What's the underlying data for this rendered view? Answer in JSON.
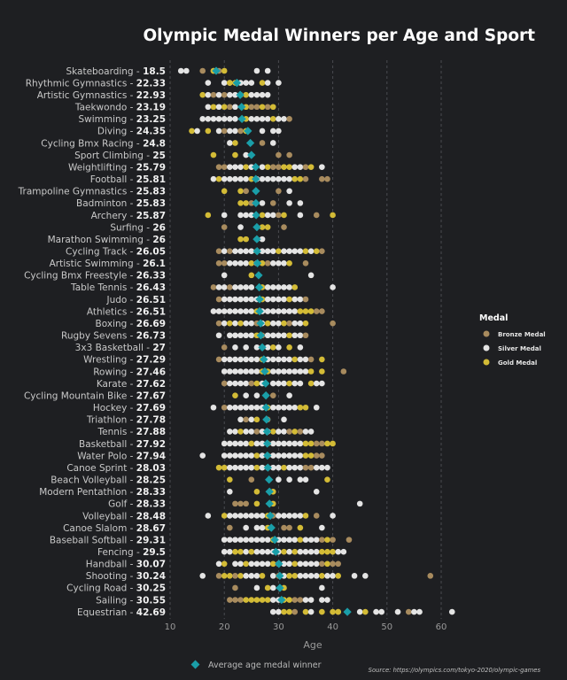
{
  "chart_data": {
    "type": "scatter",
    "title": "Olympic Medal Winners per Age and Sport",
    "xlabel": "Age",
    "xlim": [
      10,
      64
    ],
    "xticks": [
      10,
      20,
      30,
      40,
      50,
      60
    ],
    "grid": "vertical dashed",
    "legend": {
      "title": "Medal",
      "placement": "right",
      "items": [
        {
          "key": "b",
          "label": "Bronze Medal",
          "color": "#a88b5e"
        },
        {
          "key": "s",
          "label": "Silver Medal",
          "color": "#e4e4e4"
        },
        {
          "key": "g",
          "label": "Gold Medal",
          "color": "#d3bb36"
        }
      ]
    },
    "average_marker": {
      "label": "Average age medal winner",
      "color": "#1a9ea8"
    },
    "source": "Source: https://olympics.com/tokyo-2020/olympic-games",
    "sports": [
      {
        "name": "Skateboarding",
        "avg": "18.5",
        "s": [
          12,
          13,
          26,
          28
        ],
        "b": [
          16,
          18,
          19
        ],
        "g": [
          18,
          20
        ]
      },
      {
        "name": "Rhythmic Gymnastics",
        "avg": "22.33",
        "s": [
          17,
          20,
          21,
          23,
          24,
          25,
          28,
          30
        ],
        "b": [],
        "g": [
          21,
          22,
          27
        ]
      },
      {
        "name": "Artistic Gymnastics",
        "avg": "22.93",
        "s": [
          17,
          19,
          21,
          22,
          25,
          26,
          27,
          28
        ],
        "b": [
          18,
          20
        ],
        "g": [
          16,
          23,
          24
        ]
      },
      {
        "name": "Taekwondo",
        "avg": "23.19",
        "s": [
          17,
          19,
          22
        ],
        "b": [
          21,
          25,
          26,
          28
        ],
        "g": [
          18,
          20,
          24,
          27,
          29
        ]
      },
      {
        "name": "Swimming",
        "avg": "23.25",
        "s": [
          16,
          17,
          18,
          19,
          20,
          21,
          22,
          25,
          26,
          27,
          28,
          30,
          31
        ],
        "b": [
          32
        ],
        "g": [
          24,
          29
        ]
      },
      {
        "name": "Diving",
        "avg": "24.35",
        "s": [
          15,
          19,
          21,
          22,
          27,
          29,
          30
        ],
        "b": [
          20,
          23
        ],
        "g": [
          14,
          17,
          24
        ]
      },
      {
        "name": "Cycling Bmx Racing",
        "avg": "24.8",
        "s": [
          21,
          29
        ],
        "b": [
          27
        ],
        "g": [
          22
        ]
      },
      {
        "name": "Sport Climbing",
        "avg": "25",
        "s": [
          24
        ],
        "b": [
          30,
          32
        ],
        "g": [
          18,
          22
        ]
      },
      {
        "name": "Weightlifting",
        "avg": "25.79",
        "s": [
          21,
          22,
          23,
          25,
          27,
          33,
          34,
          38
        ],
        "b": [
          19,
          20,
          29,
          30,
          35
        ],
        "g": [
          24,
          28,
          31,
          32,
          36
        ]
      },
      {
        "name": "Football",
        "avg": "25.81",
        "s": [
          18,
          20,
          21,
          22,
          23,
          24,
          26,
          27,
          28,
          29,
          30,
          31,
          32
        ],
        "b": [
          35,
          38,
          39
        ],
        "g": [
          19,
          25,
          33,
          34
        ]
      },
      {
        "name": "Trampoline Gymnastics",
        "avg": "25.83",
        "s": [
          32
        ],
        "b": [
          24,
          30
        ],
        "g": [
          20,
          23
        ]
      },
      {
        "name": "Badminton",
        "avg": "25.83",
        "s": [
          27,
          32,
          34
        ],
        "b": [
          25,
          29
        ],
        "g": [
          23,
          24
        ]
      },
      {
        "name": "Archery",
        "avg": "25.87",
        "s": [
          20,
          23,
          24,
          25,
          28,
          29,
          34
        ],
        "b": [
          30,
          37
        ],
        "g": [
          17,
          27,
          31,
          40
        ]
      },
      {
        "name": "Surfing",
        "avg": "26",
        "s": [
          23
        ],
        "b": [
          20,
          31
        ],
        "g": [
          27,
          28
        ]
      },
      {
        "name": "Marathon Swimming",
        "avg": "26",
        "s": [
          27
        ],
        "b": [
          26
        ],
        "g": [
          23,
          24
        ]
      },
      {
        "name": "Cycling Track",
        "avg": "26.05",
        "s": [
          20,
          22,
          23,
          24,
          25,
          27,
          28,
          29,
          31,
          32,
          33,
          34,
          36
        ],
        "b": [
          19,
          21,
          38
        ],
        "g": [
          26,
          30,
          35,
          37
        ]
      },
      {
        "name": "Artistic Swimming",
        "avg": "26.1",
        "s": [
          21,
          22,
          23,
          24,
          26,
          29,
          30,
          31
        ],
        "b": [
          19,
          20,
          28,
          35
        ],
        "g": [
          25,
          27,
          32
        ]
      },
      {
        "name": "Cycling Bmx Freestyle",
        "avg": "26.33",
        "s": [
          20,
          36
        ],
        "b": [],
        "g": [
          25
        ]
      },
      {
        "name": "Table Tennis",
        "avg": "26.43",
        "s": [
          19,
          20,
          22,
          23,
          24,
          25,
          28,
          29,
          30,
          31,
          32,
          40
        ],
        "b": [
          18,
          21
        ],
        "g": [
          27,
          33
        ]
      },
      {
        "name": "Judo",
        "avg": "26.51",
        "s": [
          20,
          21,
          22,
          23,
          24,
          25,
          26,
          28,
          29,
          30,
          31,
          33,
          34
        ],
        "b": [
          19,
          35
        ],
        "g": [
          27,
          32
        ]
      },
      {
        "name": "Athletics",
        "avg": "26.51",
        "s": [
          18,
          19,
          20,
          21,
          22,
          23,
          24,
          25,
          27,
          28,
          29,
          30,
          31,
          32,
          33
        ],
        "b": [
          37,
          38
        ],
        "g": [
          26,
          34,
          35,
          36
        ]
      },
      {
        "name": "Boxing",
        "avg": "26.69",
        "s": [
          20,
          22,
          24,
          25,
          27,
          29,
          30,
          33,
          34
        ],
        "b": [
          19,
          26,
          32,
          40
        ],
        "g": [
          21,
          23,
          28,
          31,
          35
        ]
      },
      {
        "name": "Rugby Sevens",
        "avg": "26.73",
        "s": [
          19,
          21,
          22,
          23,
          24,
          25,
          28,
          29,
          30,
          31,
          33,
          34
        ],
        "b": [
          27,
          35
        ],
        "g": [
          26,
          32
        ]
      },
      {
        "name": "3x3 Basketball",
        "avg": "27",
        "s": [
          22,
          24,
          26,
          28,
          30,
          34
        ],
        "b": [
          20
        ],
        "g": [
          29,
          32
        ]
      },
      {
        "name": "Wrestling",
        "avg": "27.29",
        "s": [
          20,
          21,
          22,
          23,
          24,
          25,
          26,
          28,
          29,
          30,
          31,
          32,
          34,
          35
        ],
        "b": [
          19,
          36
        ],
        "g": [
          27,
          33,
          38
        ]
      },
      {
        "name": "Rowing",
        "avg": "27.46",
        "s": [
          20,
          21,
          22,
          23,
          24,
          25,
          26,
          29,
          30,
          31,
          32,
          33,
          34,
          35
        ],
        "b": [
          42
        ],
        "g": [
          27,
          28,
          36,
          38
        ]
      },
      {
        "name": "Karate",
        "avg": "27.62",
        "s": [
          21,
          22,
          23,
          24,
          27,
          29,
          30,
          31,
          33,
          34,
          37,
          38
        ],
        "b": [
          20,
          25
        ],
        "g": [
          26,
          32,
          36
        ]
      },
      {
        "name": "Cycling Mountain Bike",
        "avg": "27.67",
        "s": [
          24,
          26,
          32
        ],
        "b": [
          29
        ],
        "g": [
          22
        ]
      },
      {
        "name": "Hockey",
        "avg": "27.69",
        "s": [
          18,
          21,
          22,
          23,
          24,
          25,
          26,
          27,
          29,
          30,
          31,
          32,
          33,
          37
        ],
        "b": [
          20
        ],
        "g": [
          28,
          34,
          35
        ]
      },
      {
        "name": "Triathlon",
        "avg": "27.78",
        "s": [
          23,
          25,
          31
        ],
        "b": [
          24,
          28
        ],
        "g": [
          26
        ]
      },
      {
        "name": "Tennis",
        "avg": "27.88",
        "s": [
          21,
          22,
          24,
          25,
          27,
          28,
          30,
          31,
          35,
          36
        ],
        "b": [
          26,
          32,
          34
        ],
        "g": [
          23,
          29,
          33
        ]
      },
      {
        "name": "Basketball",
        "avg": "27.92",
        "s": [
          20,
          21,
          22,
          23,
          24,
          26,
          27,
          29,
          30,
          31,
          32,
          33,
          34
        ],
        "b": [
          37,
          38
        ],
        "g": [
          25,
          28,
          35,
          36,
          39,
          40
        ]
      },
      {
        "name": "Water Polo",
        "avg": "27.94",
        "s": [
          16,
          20,
          21,
          22,
          23,
          24,
          25,
          27,
          29,
          30,
          31,
          32,
          33,
          34
        ],
        "b": [
          37,
          38
        ],
        "g": [
          26,
          28,
          35,
          36
        ]
      },
      {
        "name": "Canoe Sprint",
        "avg": "28.03",
        "s": [
          21,
          22,
          23,
          24,
          25,
          27,
          28,
          29,
          30,
          32,
          33,
          34,
          37,
          38,
          39
        ],
        "b": [
          35,
          36
        ],
        "g": [
          19,
          20,
          26,
          31
        ]
      },
      {
        "name": "Beach Volleyball",
        "avg": "28.25",
        "s": [
          30,
          32,
          34,
          35
        ],
        "b": [
          25
        ],
        "g": [
          21,
          39
        ]
      },
      {
        "name": "Modern Pentathlon",
        "avg": "28.33",
        "s": [
          21,
          37
        ],
        "b": [],
        "g": [
          26,
          29
        ]
      },
      {
        "name": "Golf",
        "avg": "28.33",
        "s": [
          45
        ],
        "b": [
          22,
          23,
          24
        ],
        "g": [
          26,
          29
        ]
      },
      {
        "name": "Volleyball",
        "avg": "28.48",
        "s": [
          17,
          21,
          22,
          23,
          24,
          25,
          26,
          27,
          30,
          31,
          32,
          33,
          34,
          40
        ],
        "b": [
          29,
          37
        ],
        "g": [
          20,
          28,
          35
        ]
      },
      {
        "name": "Canoe Slalom",
        "avg": "28.67",
        "s": [
          24,
          26,
          27,
          38
        ],
        "b": [
          21,
          31,
          32
        ],
        "g": [
          28,
          34
        ]
      },
      {
        "name": "Baseball Softball",
        "avg": "29.31",
        "s": [
          20,
          21,
          22,
          23,
          24,
          25,
          26,
          27,
          28,
          30,
          31,
          32,
          33,
          35,
          36,
          37
        ],
        "b": [
          38,
          40,
          43
        ],
        "g": [
          29,
          34,
          39
        ]
      },
      {
        "name": "Fencing",
        "avg": "29.5",
        "s": [
          20,
          21,
          24,
          26,
          27,
          28,
          29,
          30,
          32,
          34,
          35,
          36,
          37,
          41,
          42
        ],
        "b": [],
        "g": [
          22,
          23,
          25,
          31,
          33,
          38,
          39,
          40
        ]
      },
      {
        "name": "Handball",
        "avg": "30.07",
        "s": [
          19,
          22,
          23,
          25,
          26,
          27,
          28,
          30,
          31,
          32,
          34,
          35,
          36,
          37
        ],
        "b": [
          38,
          40,
          41
        ],
        "g": [
          20,
          24,
          29,
          33,
          39
        ]
      },
      {
        "name": "Shooting",
        "avg": "30.24",
        "s": [
          16,
          24,
          25,
          26,
          29,
          31,
          34,
          35,
          36,
          37,
          39,
          40,
          44,
          46
        ],
        "b": [
          19,
          22,
          30,
          58
        ],
        "g": [
          20,
          21,
          23,
          27,
          32,
          33,
          38,
          41
        ]
      },
      {
        "name": "Cycling Road",
        "avg": "30.25",
        "s": [
          26,
          29,
          38
        ],
        "b": [
          22
        ],
        "g": [
          28,
          31
        ]
      },
      {
        "name": "Sailing",
        "avg": "30.55",
        "s": [
          29,
          30,
          35,
          36,
          38,
          39
        ],
        "b": [
          21,
          22,
          23,
          33,
          34
        ],
        "g": [
          24,
          25,
          26,
          27,
          28,
          31,
          32
        ]
      },
      {
        "name": "Equestrian",
        "avg": "42.69",
        "s": [
          29,
          30,
          36,
          45,
          48,
          49,
          52,
          55,
          56,
          62
        ],
        "b": [
          33,
          41,
          54
        ],
        "g": [
          31,
          32,
          35,
          38,
          40,
          41,
          46
        ]
      }
    ]
  }
}
